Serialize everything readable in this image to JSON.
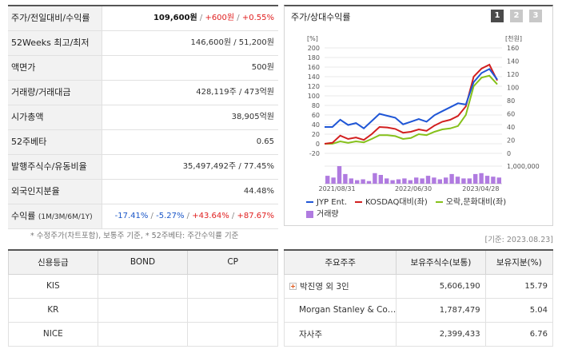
{
  "summary": {
    "rows": [
      {
        "label": "주가/전일대비/수익률",
        "price": "109,600원",
        "sep1": " / ",
        "change": "+600원",
        "sep2": " / ",
        "rate": "+0.55%"
      },
      {
        "label": "52Weeks 최고/최저",
        "value": "146,600원 / 51,200원"
      },
      {
        "label": "액면가",
        "value": "500원"
      },
      {
        "label": "거래량/거래대금",
        "value": "428,119주 / 473억원"
      },
      {
        "label": "시가총액",
        "value": "38,905억원"
      },
      {
        "label": "52주베타",
        "value": "0.65"
      },
      {
        "label": "발행주식수/유동비율",
        "value": "35,497,492주 / 77.45%"
      },
      {
        "label": "외국인지분율",
        "value": "44.48%"
      },
      {
        "label": "수익률",
        "label_small": "(1M/3M/6M/1Y)",
        "r1": "-17.41%",
        "r2": "-5.27%",
        "r3": "+43.64%",
        "r4": "+87.67%",
        "sep": " / "
      }
    ],
    "note": "* 수정주가(차트포함), 보통주 기준, * 52주베타: 주간수익률 기준"
  },
  "chart_panel": {
    "title": "주가/상대수익률",
    "period_buttons": [
      "1",
      "2",
      "3"
    ],
    "active_period": "1",
    "left_unit": "[%]",
    "right_unit": "[천원]",
    "volume_tick": "1,000,000",
    "legend": [
      {
        "name": "JYP Ent.",
        "color": "#1f56d6"
      },
      {
        "name": "KOSDAQ대비(좌)",
        "color": "#d21f1f"
      },
      {
        "name": "오락,문화대비(좌)",
        "color": "#86c11b"
      },
      {
        "name": "거래량",
        "color": "#b07be0"
      }
    ]
  },
  "chart_data": {
    "type": "line",
    "x_ticks": [
      "2021/08/31",
      "2022/06/30",
      "2023/04/28"
    ],
    "y_left": {
      "label": "[%]",
      "ticks": [
        -20,
        0,
        20,
        40,
        60,
        80,
        100,
        120,
        140,
        160,
        180,
        200
      ],
      "ylim": [
        -20,
        200
      ]
    },
    "y_right": {
      "label": "[천원]",
      "ticks": [
        0,
        20,
        40,
        60,
        80,
        100,
        120,
        140,
        160
      ],
      "ylim": [
        0,
        160
      ]
    },
    "series": [
      {
        "name": "JYP Ent.",
        "axis": "right",
        "color": "#1f56d6",
        "values": [
          40,
          40,
          51,
          43,
          46,
          38,
          49,
          60,
          57,
          54,
          44,
          48,
          52,
          48,
          58,
          64,
          70,
          76,
          74,
          108,
          122,
          128,
          112
        ]
      },
      {
        "name": "KOSDAQ대비(좌)",
        "axis": "left",
        "color": "#d21f1f",
        "values": [
          0,
          2,
          17,
          10,
          13,
          8,
          20,
          35,
          34,
          31,
          23,
          25,
          30,
          27,
          38,
          46,
          50,
          58,
          78,
          140,
          157,
          165,
          132
        ]
      },
      {
        "name": "오락,문화대비(좌)",
        "axis": "left",
        "color": "#86c11b",
        "values": [
          0,
          0,
          5,
          2,
          5,
          3,
          10,
          18,
          18,
          16,
          10,
          12,
          20,
          18,
          25,
          30,
          32,
          37,
          60,
          120,
          138,
          142,
          124
        ]
      }
    ],
    "volume": {
      "name": "거래량",
      "tick": 1000000,
      "values": [
        0.45,
        0.35,
        1.0,
        0.55,
        0.3,
        0.2,
        0.25,
        0.15,
        0.6,
        0.5,
        0.3,
        0.2,
        0.25,
        0.3,
        0.2,
        0.35,
        0.3,
        0.45,
        0.35,
        0.25,
        0.35,
        0.55,
        0.4,
        0.3,
        0.3,
        0.55,
        0.6,
        0.45,
        0.4,
        0.35
      ]
    },
    "grid": true
  },
  "base_date": "[기준: 2023.08.23]",
  "credit_table": {
    "headers": [
      "신용등급",
      "BOND",
      "CP"
    ],
    "rows": [
      {
        "agency": "KIS",
        "bond": "",
        "cp": ""
      },
      {
        "agency": "KR",
        "bond": "",
        "cp": ""
      },
      {
        "agency": "NICE",
        "bond": "",
        "cp": ""
      }
    ]
  },
  "holders_table": {
    "headers": [
      "주요주주",
      "보유주식수(보통)",
      "보유지분(%)"
    ],
    "rows": [
      {
        "name": "박진영 외 3인",
        "shares": "5,606,190",
        "pct": "15.79",
        "expandable": true
      },
      {
        "name": "Morgan Stanley & Co…",
        "shares": "1,787,479",
        "pct": "5.04",
        "expandable": false
      },
      {
        "name": "자사주",
        "shares": "2,399,433",
        "pct": "6.76",
        "expandable": false
      }
    ]
  }
}
